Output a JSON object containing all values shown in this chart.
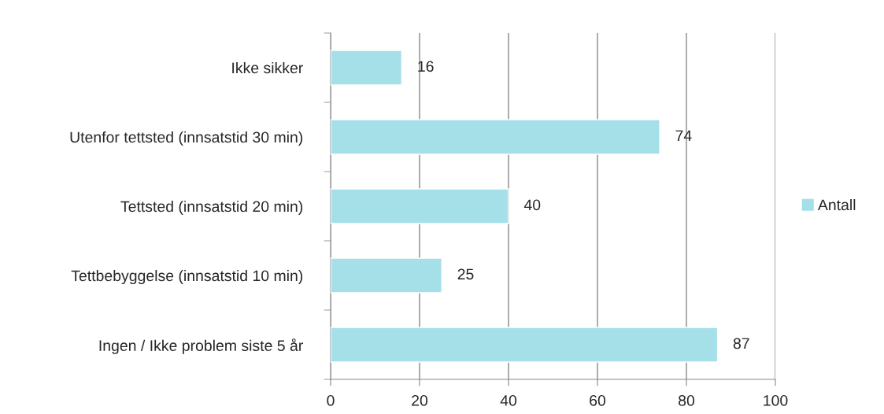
{
  "chart_data": {
    "type": "bar",
    "orientation": "horizontal",
    "categories": [
      "Ikke sikker",
      "Utenfor tettsted (innsatstid 30 min)",
      "Tettsted (innsatstid 20 min)",
      "Tettbebyggelse (innsatstid 10 min)",
      "Ingen / Ikke problem siste 5 år"
    ],
    "series": [
      {
        "name": "Antall",
        "color": "#a5dfe8",
        "values": [
          16,
          74,
          40,
          25,
          87
        ]
      }
    ],
    "xlim": [
      0,
      100
    ],
    "xticks": [
      0,
      20,
      40,
      60,
      80,
      100
    ],
    "grid": "x",
    "legend": "right",
    "data_labels": true
  }
}
